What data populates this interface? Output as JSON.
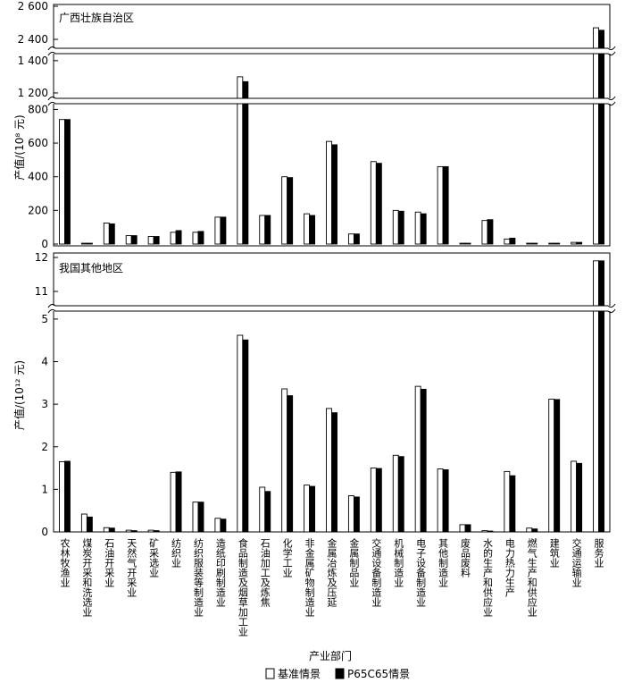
{
  "chart_data": {
    "type": "bar",
    "xlabel": "产业部门",
    "legend": [
      "基准情景",
      "P65C65情景"
    ],
    "categories": [
      "农林牧渔业",
      "煤炭开采和洗选业",
      "石油开采业",
      "天然气开采业",
      "矿采选业",
      "纺织业",
      "纺织服装等制造业",
      "造纸印刷制造业",
      "食品制造及烟草加工业",
      "石油加工及炼焦",
      "化学工业",
      "非金属矿物制造业",
      "金属冶炼及压延",
      "金属制品业",
      "交通设备制造业",
      "机械制造业",
      "电子设备制造业",
      "其他制造业",
      "废品废料",
      "水的生产和供应业",
      "电力热力生产",
      "燃气生产和供应业",
      "建筑业",
      "交通运输业",
      "服务业"
    ],
    "panels": [
      {
        "title": "广西壮族自治区",
        "ylabel": "产值/(10⁸ 元)",
        "yticks_low": [
          "0",
          "200",
          "400",
          "600",
          "800"
        ],
        "yticks_mid": [
          "1 200",
          "1 400"
        ],
        "yticks_high": [
          "2 400",
          "2 600"
        ],
        "series": [
          {
            "name": "基准情景",
            "values": [
              740,
              5,
              125,
              50,
              45,
              70,
              70,
              160,
              1300,
              170,
              400,
              180,
              610,
              60,
              490,
              200,
              190,
              460,
              5,
              140,
              30,
              5,
              5,
              10,
              2470
            ]
          },
          {
            "name": "P65C65情景",
            "values": [
              740,
              5,
              120,
              50,
              45,
              80,
              75,
              160,
              1270,
              170,
              395,
              170,
              590,
              60,
              480,
              195,
              180,
              460,
              5,
              145,
              35,
              5,
              5,
              10,
              2455
            ]
          }
        ]
      },
      {
        "title": "我国其他地区",
        "ylabel": "产值/(10¹² 元)",
        "yticks_low": [
          "0",
          "1",
          "2",
          "3",
          "4",
          "5"
        ],
        "yticks_high": [
          "11",
          "12"
        ],
        "series": [
          {
            "name": "基准情景",
            "values": [
              1.65,
              0.42,
              0.1,
              0.04,
              0.04,
              1.4,
              0.7,
              0.32,
              4.62,
              1.05,
              3.36,
              1.1,
              2.9,
              0.85,
              1.5,
              1.8,
              3.42,
              1.48,
              0.17,
              0.03,
              1.42,
              0.09,
              3.12,
              1.66,
              11.9
            ]
          },
          {
            "name": "P65C65情景",
            "values": [
              1.66,
              0.35,
              0.09,
              0.03,
              0.03,
              1.41,
              0.7,
              0.3,
              4.51,
              0.95,
              3.2,
              1.07,
              2.8,
              0.82,
              1.49,
              1.77,
              3.35,
              1.46,
              0.17,
              0.02,
              1.32,
              0.07,
              3.11,
              1.61,
              11.9
            ]
          }
        ]
      }
    ]
  }
}
